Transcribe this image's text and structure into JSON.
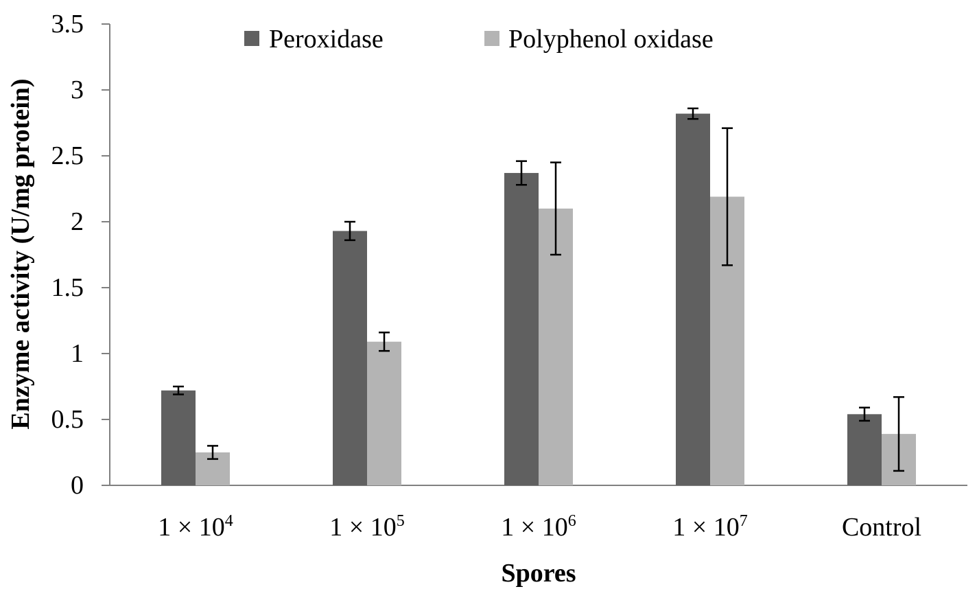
{
  "chart_data": {
    "type": "bar",
    "title": "",
    "xlabel": "Spores",
    "ylabel": "Enzyme activity (U/mg protein)",
    "ylim": [
      0,
      3.5
    ],
    "yticks": [
      {
        "value": 0,
        "label": "0"
      },
      {
        "value": 0.5,
        "label": "0.5"
      },
      {
        "value": 1,
        "label": "1"
      },
      {
        "value": 1.5,
        "label": "1.5"
      },
      {
        "value": 2,
        "label": "2"
      },
      {
        "value": 2.5,
        "label": "2.5"
      },
      {
        "value": 3,
        "label": "3"
      },
      {
        "value": 3.5,
        "label": "3.5"
      }
    ],
    "categories": [
      {
        "base": "1 × 10",
        "exp": "4"
      },
      {
        "base": "1 × 10",
        "exp": "5"
      },
      {
        "base": "1 × 10",
        "exp": "6"
      },
      {
        "base": "1 × 10",
        "exp": "7"
      },
      {
        "base": "Control",
        "exp": ""
      }
    ],
    "series": [
      {
        "name": "Peroxidase",
        "color": "#606060",
        "values": [
          0.72,
          1.93,
          2.37,
          2.82,
          0.54
        ],
        "errors": [
          0.03,
          0.07,
          0.09,
          0.04,
          0.05
        ]
      },
      {
        "name": "Polyphenol oxidase",
        "color": "#b4b4b4",
        "values": [
          0.25,
          1.09,
          2.1,
          2.19,
          0.39
        ],
        "errors": [
          0.05,
          0.07,
          0.35,
          0.52,
          0.28
        ]
      }
    ],
    "grid": false,
    "legend_position": "top"
  }
}
